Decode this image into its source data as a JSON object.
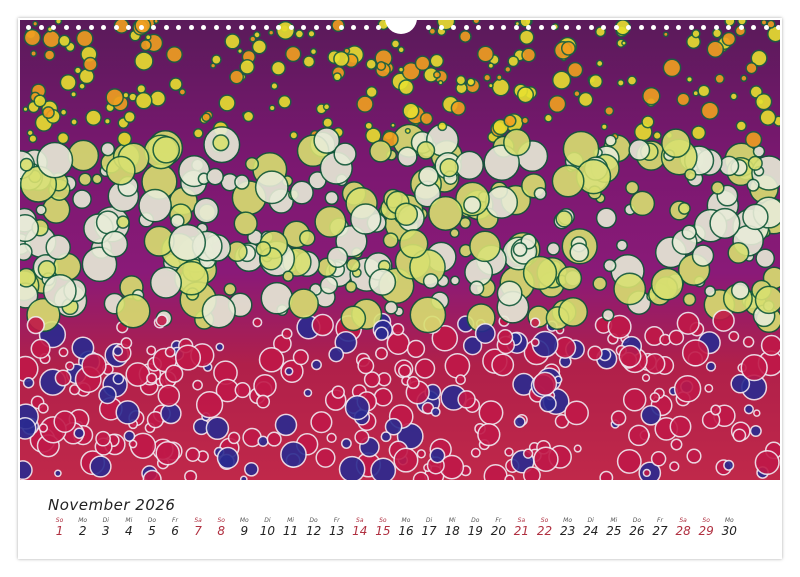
{
  "calendar": {
    "title": "November 2026",
    "days": [
      {
        "wd": "So",
        "d": "1",
        "weekend": true
      },
      {
        "wd": "Mo",
        "d": "2"
      },
      {
        "wd": "Di",
        "d": "3"
      },
      {
        "wd": "Mi",
        "d": "4"
      },
      {
        "wd": "Do",
        "d": "5"
      },
      {
        "wd": "Fr",
        "d": "6"
      },
      {
        "wd": "Sa",
        "d": "7",
        "weekend": true
      },
      {
        "wd": "So",
        "d": "8",
        "weekend": true
      },
      {
        "wd": "Mo",
        "d": "9"
      },
      {
        "wd": "Di",
        "d": "10"
      },
      {
        "wd": "Mi",
        "d": "11"
      },
      {
        "wd": "Do",
        "d": "12"
      },
      {
        "wd": "Fr",
        "d": "13"
      },
      {
        "wd": "Sa",
        "d": "14",
        "weekend": true
      },
      {
        "wd": "So",
        "d": "15",
        "weekend": true
      },
      {
        "wd": "Mo",
        "d": "16"
      },
      {
        "wd": "Di",
        "d": "17"
      },
      {
        "wd": "Mi",
        "d": "18"
      },
      {
        "wd": "Do",
        "d": "19"
      },
      {
        "wd": "Fr",
        "d": "20"
      },
      {
        "wd": "Sa",
        "d": "21",
        "weekend": true
      },
      {
        "wd": "So",
        "d": "22",
        "weekend": true
      },
      {
        "wd": "Mo",
        "d": "23"
      },
      {
        "wd": "Di",
        "d": "24"
      },
      {
        "wd": "Mi",
        "d": "25"
      },
      {
        "wd": "Do",
        "d": "26"
      },
      {
        "wd": "Fr",
        "d": "27"
      },
      {
        "wd": "Sa",
        "d": "28",
        "weekend": true
      },
      {
        "wd": "So",
        "d": "29",
        "weekend": true
      },
      {
        "wd": "Mo",
        "d": "30"
      }
    ]
  },
  "colors": {
    "weekend": "#b03040",
    "text": "#222222"
  }
}
